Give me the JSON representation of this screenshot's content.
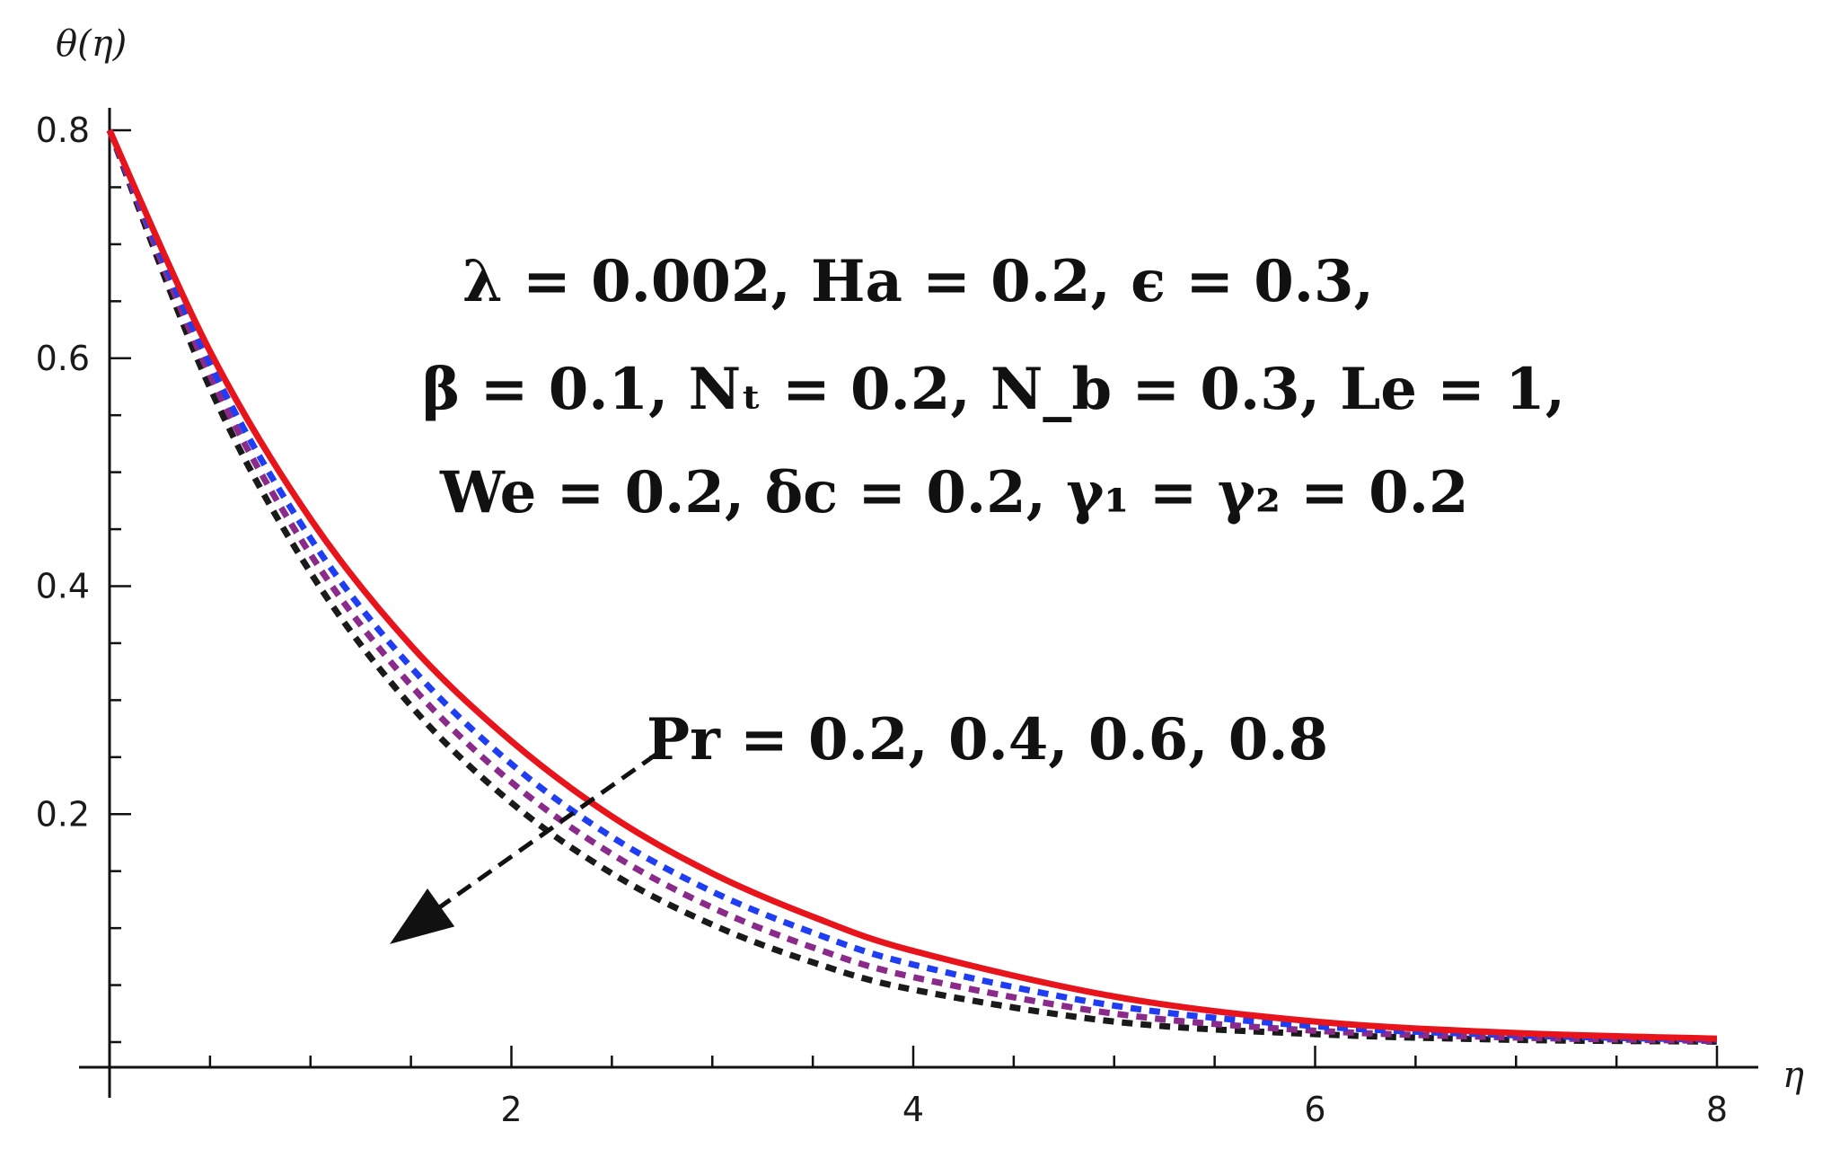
{
  "chart_data": {
    "type": "line",
    "xlabel": "η",
    "ylabel": "θ(η)",
    "xlim": [
      0,
      8.1
    ],
    "ylim": [
      -0.02,
      0.8
    ],
    "x_ticks_major": [
      2,
      4,
      6,
      8
    ],
    "x_ticks_minor_step": 0.5,
    "y_ticks_major": [
      0.2,
      0.4,
      0.6,
      0.8
    ],
    "y_ticks_minor_step": 0.05,
    "x_tick_labels": [
      "2",
      "4",
      "6",
      "8"
    ],
    "y_tick_labels": [
      "0.2",
      "0.4",
      "0.6",
      "0.8"
    ],
    "grid": false,
    "series": [
      {
        "param": "Pr = 0.8",
        "color": "#e8141c",
        "style": "solid",
        "x": [
          0,
          0.5,
          1,
          1.5,
          2,
          2.5,
          3,
          3.5,
          4,
          5,
          6,
          7,
          8
        ],
        "y": [
          0.8,
          0.606,
          0.459,
          0.348,
          0.264,
          0.198,
          0.148,
          0.11,
          0.08,
          0.04,
          0.018,
          0.008,
          0.003
        ]
      },
      {
        "param": "Pr = 0.6",
        "color": "#1f3df2",
        "style": "dashed",
        "x": [
          0,
          0.5,
          1,
          1.5,
          2,
          2.5,
          3,
          3.5,
          4,
          5,
          6,
          7,
          8
        ],
        "y": [
          0.8,
          0.595,
          0.442,
          0.329,
          0.244,
          0.18,
          0.132,
          0.096,
          0.068,
          0.032,
          0.014,
          0.006,
          0.002
        ]
      },
      {
        "param": "Pr = 0.4",
        "color": "#8a2a8a",
        "style": "dashed",
        "x": [
          0,
          0.5,
          1,
          1.5,
          2,
          2.5,
          3,
          3.5,
          4,
          5,
          6,
          7,
          8
        ],
        "y": [
          0.8,
          0.585,
          0.428,
          0.313,
          0.228,
          0.165,
          0.118,
          0.083,
          0.057,
          0.025,
          0.01,
          0.004,
          0.001
        ]
      },
      {
        "param": "Pr = 0.2",
        "color": "#1a1a1a",
        "style": "dashed",
        "x": [
          0,
          0.5,
          1,
          1.5,
          2,
          2.5,
          3,
          3.5,
          4,
          5,
          6,
          7,
          8
        ],
        "y": [
          0.8,
          0.574,
          0.412,
          0.295,
          0.21,
          0.148,
          0.103,
          0.07,
          0.046,
          0.018,
          0.007,
          0.002,
          0.0005
        ]
      }
    ],
    "annotations": {
      "params_line1": "λ = 0.002,  Ha = 0.2,  ϵ = 0.3,",
      "params_line2": "β = 0.1,  Nₜ = 0.2,  N_b = 0.3,  Le = 1,",
      "params_line3": "We = 0.2,  δc = 0.2,  γ₁ = γ₂ = 0.2",
      "pr_label": "Pr = 0.2,  0.4,  0.6,  0.8",
      "arrow": {
        "from": [
          2.45,
          0.26
        ],
        "to": [
          1.35,
          0.09
        ],
        "meaning": "increasing Pr"
      }
    }
  }
}
